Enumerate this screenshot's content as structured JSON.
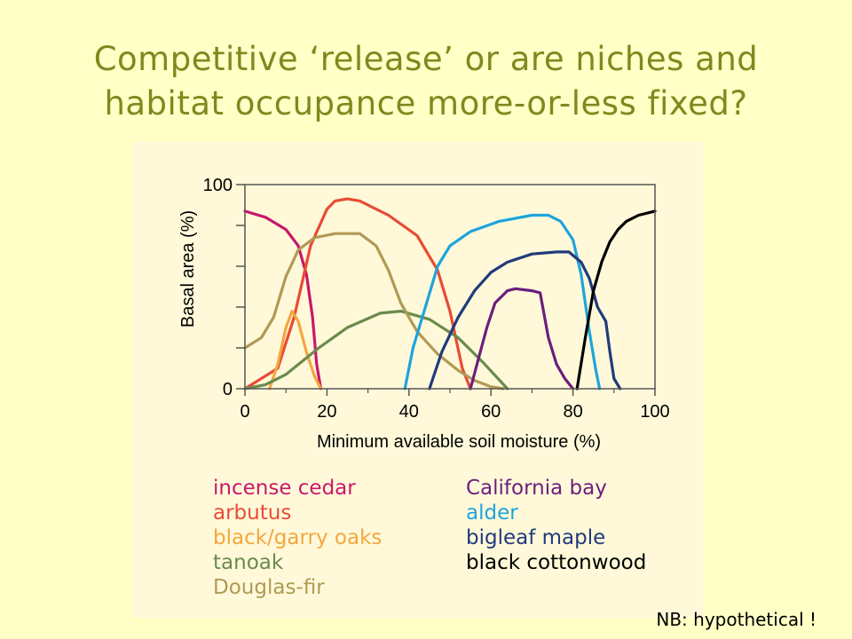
{
  "slide": {
    "title_line1": "Competitive ‘release’ or are niches and",
    "title_line2": "habitat occupance more-or-less fixed?",
    "note": "NB: hypothetical !"
  },
  "chart_data": {
    "type": "line",
    "title": "",
    "xlabel": "Minimum available soil moisture (%)",
    "ylabel": "Basal area (%)",
    "xlim": [
      0,
      100
    ],
    "ylim": [
      0,
      100
    ],
    "x_ticks": [
      0,
      20,
      40,
      60,
      80,
      100
    ],
    "y_tick_labels": [
      {
        "value": 0,
        "label": "0"
      },
      {
        "value": 100,
        "label": "100"
      }
    ],
    "y_minor_ticks": [
      20,
      40,
      60,
      80
    ],
    "grid": false,
    "legend_placement": "bottom",
    "series": [
      {
        "name": "incense cedar",
        "color": "#c8186a",
        "x": [
          0,
          5,
          10,
          13,
          15,
          16.5,
          17.5,
          18.5
        ],
        "y": [
          87,
          84,
          78,
          70,
          56,
          35,
          12,
          0
        ]
      },
      {
        "name": "arbutus",
        "color": "#e94b35",
        "x": [
          0,
          8,
          12,
          16,
          20,
          22,
          25,
          28,
          35,
          42,
          47,
          50,
          53,
          55
        ],
        "y": [
          0,
          10,
          35,
          70,
          88,
          92,
          93,
          92,
          85,
          75,
          58,
          38,
          10,
          0
        ]
      },
      {
        "name": "black/garry oaks",
        "color": "#f4a640",
        "x": [
          6,
          8,
          10,
          11.5,
          13,
          15,
          17,
          18.5
        ],
        "y": [
          0,
          12,
          30,
          38,
          33,
          18,
          6,
          0
        ]
      },
      {
        "name": "tanoak",
        "color": "#6b8a4e",
        "x": [
          0,
          5,
          10,
          18,
          25,
          33,
          38,
          45,
          52,
          58,
          64
        ],
        "y": [
          0,
          2,
          7,
          20,
          30,
          37,
          38,
          34,
          25,
          13,
          0
        ]
      },
      {
        "name": "Douglas-fir",
        "color": "#b09a55",
        "x": [
          0,
          4,
          7,
          10,
          13,
          17,
          22,
          28,
          32,
          35,
          38,
          42,
          47,
          52,
          56,
          60,
          63
        ],
        "y": [
          20,
          25,
          35,
          55,
          68,
          74,
          76,
          76,
          70,
          58,
          42,
          28,
          17,
          9,
          4,
          1,
          0
        ]
      },
      {
        "name": "California bay",
        "color": "#6c1e7d",
        "x": [
          55,
          57,
          59,
          61,
          64,
          66,
          70,
          72,
          74,
          76,
          78,
          80
        ],
        "y": [
          0,
          15,
          30,
          42,
          48,
          49,
          48,
          47,
          25,
          12,
          5,
          0
        ]
      },
      {
        "name": "alder",
        "color": "#1ea4dc",
        "x": [
          39,
          41,
          44,
          47,
          50,
          55,
          62,
          70,
          74,
          77,
          80,
          82,
          84,
          85.5,
          86.5
        ],
        "y": [
          0,
          20,
          40,
          60,
          70,
          77,
          82,
          85,
          85,
          82,
          73,
          56,
          28,
          10,
          0
        ]
      },
      {
        "name": "bigleaf maple",
        "color": "#223a7c",
        "x": [
          45,
          48,
          52,
          56,
          60,
          64,
          70,
          76,
          79,
          82,
          84,
          86,
          88,
          89,
          90,
          91.5
        ],
        "y": [
          0,
          18,
          35,
          48,
          57,
          62,
          66,
          67,
          67,
          62,
          54,
          40,
          33,
          18,
          5,
          0
        ]
      },
      {
        "name": "black cottonwood",
        "color": "#000000",
        "x": [
          81,
          83,
          85,
          87,
          89,
          91,
          93,
          96,
          100
        ],
        "y": [
          0,
          25,
          48,
          62,
          72,
          78,
          82,
          85,
          87
        ]
      }
    ]
  }
}
